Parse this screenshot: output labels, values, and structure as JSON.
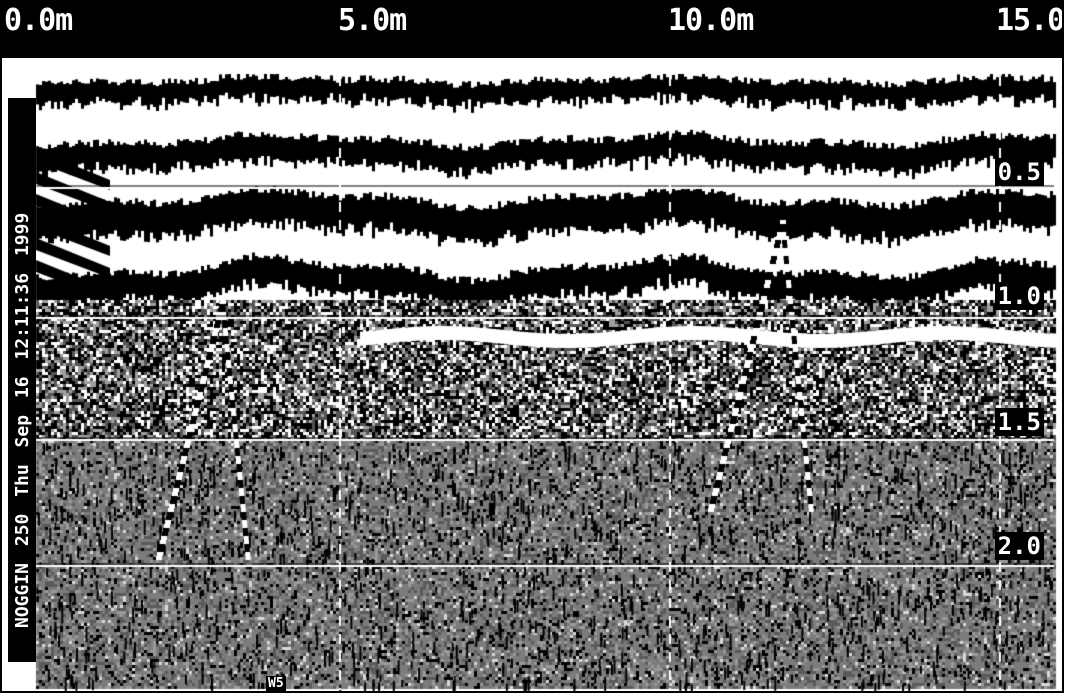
{
  "distance_axis": {
    "labels": [
      "0.0m",
      "5.0m",
      "10.0m",
      "15.0m"
    ]
  },
  "depth_axis": {
    "labels": [
      "0.5",
      "1.0",
      "1.5",
      "2.0"
    ]
  },
  "metadata": {
    "text": "NOGGIN 250 Thu Sep 16 12:11:36 1999"
  },
  "marker": {
    "text": "W5"
  },
  "colors": {
    "background": "#ffffff",
    "ink": "#000000",
    "mid_gray": "#808080"
  }
}
